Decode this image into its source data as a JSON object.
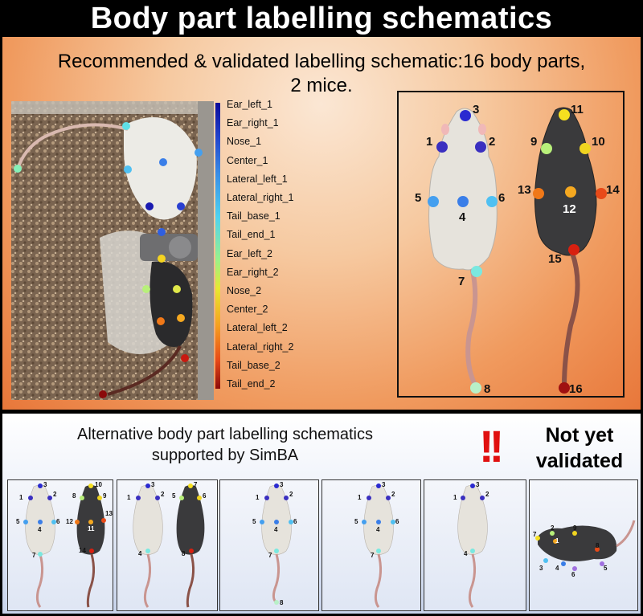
{
  "title": "Body part labelling schematics",
  "subtitle_line1": "Recommended & validated labelling schematic:16 body parts,",
  "subtitle_line2": "2 mice.",
  "legend": [
    {
      "label": "Ear_left_1",
      "color": "#1a1ab0"
    },
    {
      "label": "Ear_right_1",
      "color": "#2a3fd0"
    },
    {
      "label": "Nose_1",
      "color": "#2f5fe0"
    },
    {
      "label": "Center_1",
      "color": "#3a7ee8"
    },
    {
      "label": "Lateral_left_1",
      "color": "#449fef"
    },
    {
      "label": "Lateral_right_1",
      "color": "#4fc0f2"
    },
    {
      "label": "Tail_base_1",
      "color": "#5fe0e8"
    },
    {
      "label": "Tail_end_1",
      "color": "#86f0b8"
    },
    {
      "label": "Ear_left_2",
      "color": "#b8f07a"
    },
    {
      "label": "Ear_right_2",
      "color": "#e0e84a"
    },
    {
      "label": "Nose_2",
      "color": "#f5d420"
    },
    {
      "label": "Center_2",
      "color": "#f5a820"
    },
    {
      "label": "Lateral_left_2",
      "color": "#f07818"
    },
    {
      "label": "Lateral_right_2",
      "color": "#e84a18"
    },
    {
      "label": "Tail_base_2",
      "color": "#c81a10"
    },
    {
      "label": "Tail_end_2",
      "color": "#8b0a0a"
    }
  ],
  "schematic_numbers": [
    "1",
    "2",
    "3",
    "4",
    "5",
    "6",
    "7",
    "8",
    "9",
    "10",
    "11",
    "12",
    "13",
    "14",
    "15",
    "16"
  ],
  "alt_text_line1": "Alternative body part labelling schematics",
  "alt_text_line2": "supported by SimBA",
  "exclamation": "!!",
  "not_yet_line1": "Not yet",
  "not_yet_line2": "validated",
  "thumb1_numbers": [
    "1",
    "2",
    "3",
    "4",
    "5",
    "6",
    "7",
    "8",
    "9",
    "10",
    "11",
    "12",
    "13",
    "14"
  ],
  "thumb2_numbers": [
    "1",
    "2",
    "3",
    "4",
    "5",
    "6",
    "7",
    "8"
  ],
  "thumb3_numbers": [
    "1",
    "2",
    "3",
    "4",
    "5",
    "6",
    "7",
    "8"
  ],
  "thumb4_numbers": [
    "1",
    "2",
    "3",
    "4",
    "5",
    "6",
    "7"
  ],
  "thumb5_numbers": [
    "1",
    "2",
    "3",
    "4"
  ],
  "thumb6_numbers": [
    "1",
    "2",
    "3",
    "4",
    "5",
    "6",
    "7",
    "8",
    "9"
  ]
}
